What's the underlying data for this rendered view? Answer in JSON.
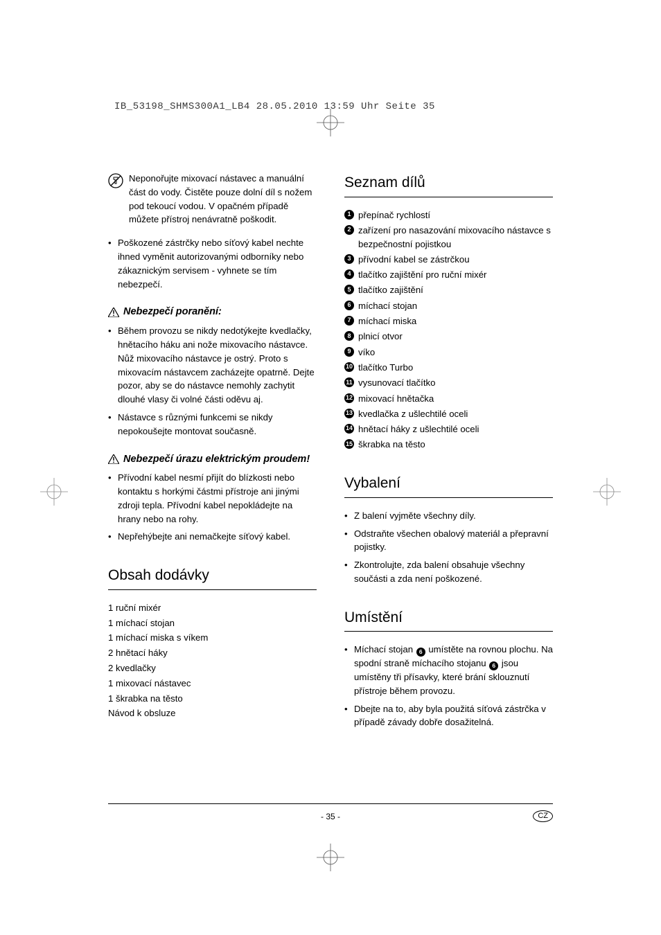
{
  "header": "IB_53198_SHMS300A1_LB4  28.05.2010  13:59 Uhr  Seite 35",
  "left": {
    "noimmerse": "Neponořujte mixovací nástavec a manuální část do vody. Čistěte pouze dolní díl s nožem pod tekoucí vodou. V opačném případě můžete přístroj nenávratně poškodit.",
    "damaged_plug": "Poškozené zástrčky nebo síťový kabel nechte ihned vyměnit autorizovanými odborníky nebo zákaznickým servisem - vyhnete se tím nebezpečí.",
    "injury_head": "Nebezpečí poranění:",
    "injury_b1": "Během provozu se nikdy nedotýkejte kvedlačky, hnětacího háku ani nože mixovacího nástavce. Nůž mixovacího nástavce je ostrý. Proto s mixovacím nástavcem zacházejte opatrně. Dejte pozor, aby se do nástavce nemohly zachytit dlouhé vlasy či volné části oděvu aj.",
    "injury_b2": "Nástavce s různými funkcemi se nikdy nepokoušejte montovat současně.",
    "shock_head": "Nebezpečí úrazu elektrickým proudem!",
    "shock_b1": "Přívodní kabel nesmí přijít do blízkosti nebo kontaktu s horkými částmi přístroje ani jinými zdroji tepla. Přívodní kabel nepokládejte na hrany nebo na rohy.",
    "shock_b2": "Nepřehýbejte ani nemačkejte síťový kabel.",
    "contents_head": "Obsah dodávky",
    "contents": [
      "1 ruční mixér",
      "1 míchací stojan",
      "1 míchací miska s víkem",
      "2 hnětací háky",
      "2 kvedlačky",
      "1 mixovací nástavec",
      "1 škrabka na těsto",
      "Návod k obsluze"
    ]
  },
  "right": {
    "parts_head": "Seznam dílů",
    "parts": [
      "přepínač rychlostí",
      "zařízení pro nasazování mixovacího nástavce s bezpečnostní pojistkou",
      "přívodní kabel se zástrčkou",
      "tlačítko zajištění pro ruční mixér",
      "tlačítko zajištění",
      "míchací stojan",
      "míchací miska",
      "plnicí otvor",
      "víko",
      "tlačítko Turbo",
      "vysunovací tlačítko",
      "mixovací hnětačka",
      "kvedlačka z ušlechtilé oceli",
      "hnětací háky z ušlechtilé oceli",
      "škrabka na těsto"
    ],
    "unpack_head": "Vybalení",
    "unpack_b1": "Z balení vyjměte všechny díly.",
    "unpack_b2": "Odstraňte všechen obalový materiál a přepravní pojistky.",
    "unpack_b3": "Zkontrolujte, zda balení obsahuje všechny součásti a zda není poškozené.",
    "place_head": "Umístění",
    "place_b1a": "Míchací stojan ",
    "place_b1b": " umístěte na rovnou plochu. Na spodní straně míchacího stojanu ",
    "place_b1c": " jsou umístěny tři přísavky, které brání sklouznutí přístroje během provozu.",
    "place_b2": "Dbejte na to, aby byla použitá síťová zástrčka v případě závady dobře dosažitelná."
  },
  "part_ref_6": "6",
  "page_number": "- 35 -",
  "lang_badge": "CZ"
}
